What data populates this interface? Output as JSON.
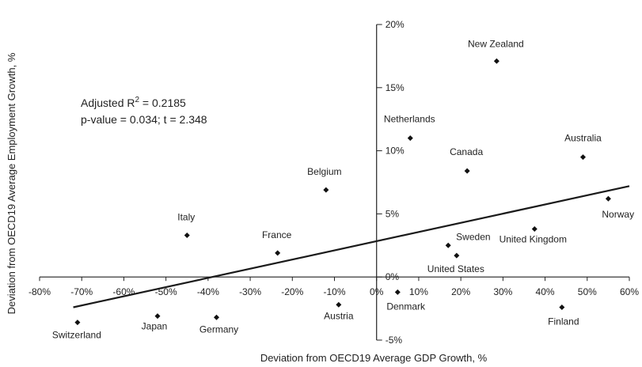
{
  "chart_data": {
    "type": "scatter",
    "title": "",
    "xlabel": "Deviation from OECD19 Average GDP Growth, %",
    "ylabel": "Deviation from OECD19 Average Employment Growth, %",
    "xlim": [
      -80,
      60
    ],
    "ylim": [
      -5,
      20
    ],
    "x_ticks": [
      -80,
      -70,
      -60,
      -50,
      -40,
      -30,
      -20,
      -10,
      0,
      10,
      20,
      30,
      40,
      50,
      60
    ],
    "y_ticks": [
      -5,
      0,
      5,
      10,
      15,
      20
    ],
    "x_tick_labels": [
      "-80%",
      "-70%",
      "-60%",
      "-50%",
      "-40%",
      "-30%",
      "-20%",
      "-10%",
      "0%",
      "10%",
      "20%",
      "30%",
      "40%",
      "50%",
      "60%"
    ],
    "y_tick_labels": [
      "-5%",
      "0%",
      "5%",
      "10%",
      "15%",
      "20%"
    ],
    "annotation": {
      "r2_prefix": "Adjusted R",
      "r2_sup": "2",
      "r2_suffix": " = 0.2185",
      "line2": "p-value = 0.034; t = 2.348"
    },
    "points": [
      {
        "name": "New Zealand",
        "x": 28.5,
        "y": 17.1
      },
      {
        "name": "Netherlands",
        "x": 8.0,
        "y": 11.0
      },
      {
        "name": "Australia",
        "x": 49.0,
        "y": 9.5
      },
      {
        "name": "Canada",
        "x": 21.5,
        "y": 8.4
      },
      {
        "name": "Belgium",
        "x": -12.0,
        "y": 6.9
      },
      {
        "name": "Norway",
        "x": 55.0,
        "y": 6.2
      },
      {
        "name": "United Kingdom",
        "x": 37.5,
        "y": 3.8
      },
      {
        "name": "Italy",
        "x": -45.0,
        "y": 3.3
      },
      {
        "name": "Sweden",
        "x": 17.0,
        "y": 2.5
      },
      {
        "name": "France",
        "x": -23.5,
        "y": 1.9
      },
      {
        "name": "United States",
        "x": 19.0,
        "y": 1.7
      },
      {
        "name": "Denmark",
        "x": 5.0,
        "y": -1.2
      },
      {
        "name": "Austria",
        "x": -9.0,
        "y": -2.2
      },
      {
        "name": "Finland",
        "x": 44.0,
        "y": -2.4
      },
      {
        "name": "Japan",
        "x": -52.0,
        "y": -3.1
      },
      {
        "name": "Germany",
        "x": -38.0,
        "y": -3.2
      },
      {
        "name": "Switzerland",
        "x": -71.0,
        "y": -3.6
      }
    ],
    "trendline": {
      "x": [
        -72,
        60
      ],
      "y": [
        -2.4,
        7.2
      ]
    }
  }
}
